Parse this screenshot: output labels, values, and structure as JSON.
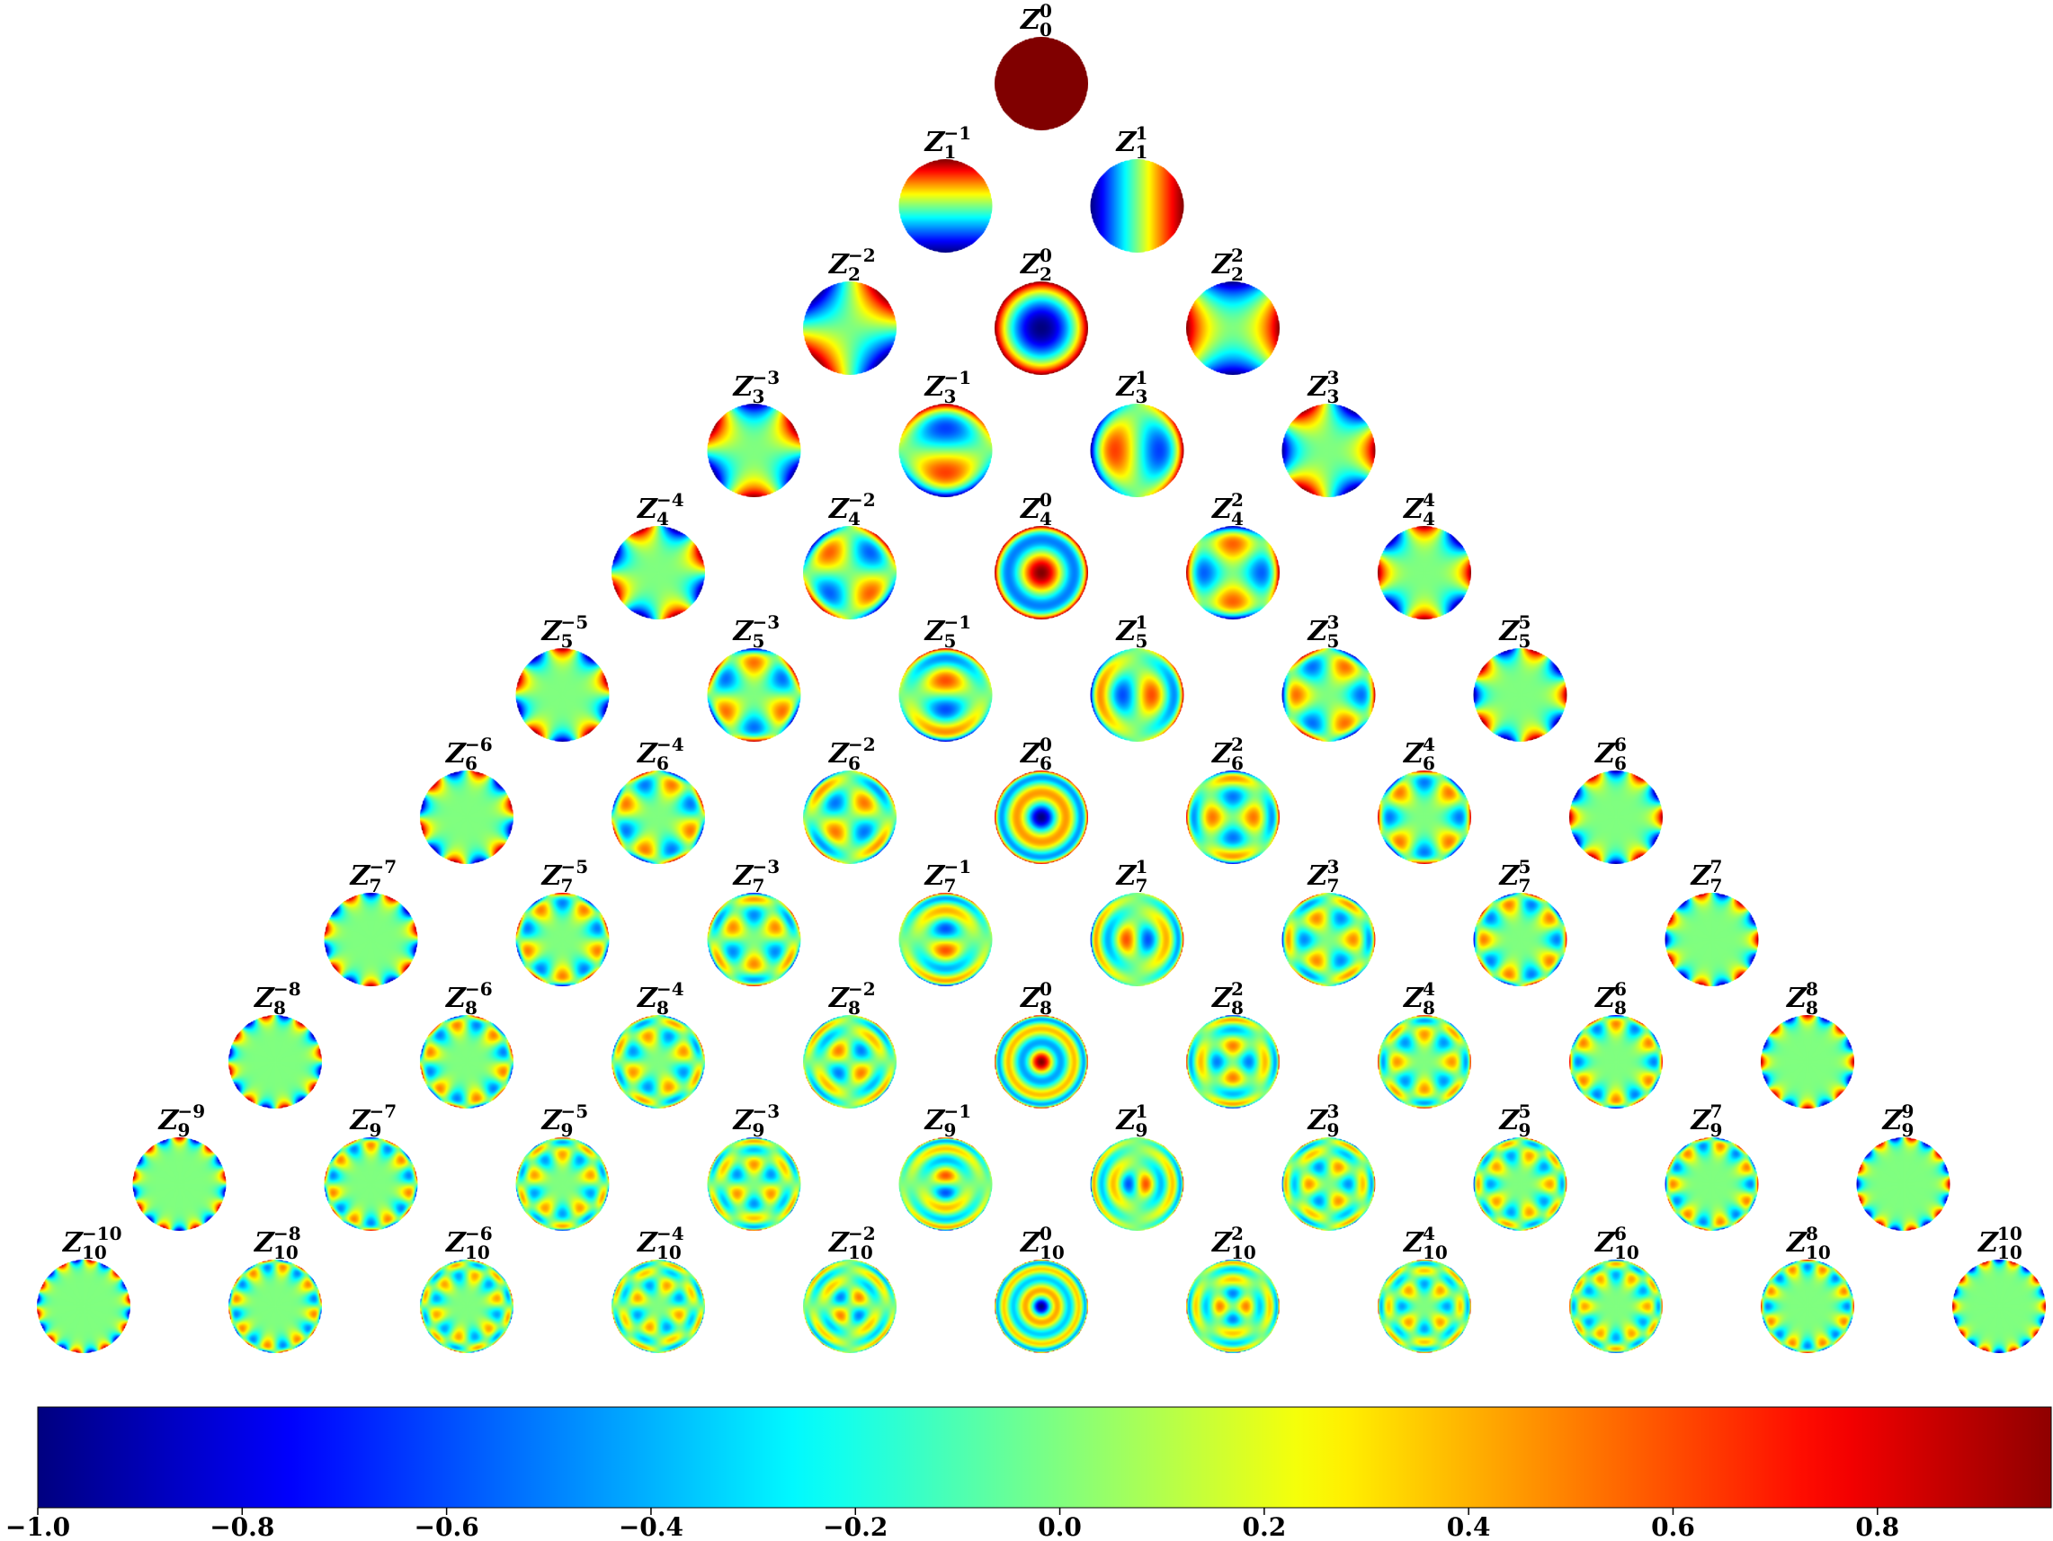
{
  "diagram": {
    "symbol": "Z",
    "max_order": 10,
    "terms": [
      {
        "n": 0,
        "m": 0
      },
      {
        "n": 1,
        "m": -1
      },
      {
        "n": 1,
        "m": 1
      },
      {
        "n": 2,
        "m": -2
      },
      {
        "n": 2,
        "m": 0
      },
      {
        "n": 2,
        "m": 2
      },
      {
        "n": 3,
        "m": -3
      },
      {
        "n": 3,
        "m": -1
      },
      {
        "n": 3,
        "m": 1
      },
      {
        "n": 3,
        "m": 3
      },
      {
        "n": 4,
        "m": -4
      },
      {
        "n": 4,
        "m": -2
      },
      {
        "n": 4,
        "m": 0
      },
      {
        "n": 4,
        "m": 2
      },
      {
        "n": 4,
        "m": 4
      },
      {
        "n": 5,
        "m": -5
      },
      {
        "n": 5,
        "m": -3
      },
      {
        "n": 5,
        "m": -1
      },
      {
        "n": 5,
        "m": 1
      },
      {
        "n": 5,
        "m": 3
      },
      {
        "n": 5,
        "m": 5
      },
      {
        "n": 6,
        "m": -6
      },
      {
        "n": 6,
        "m": -4
      },
      {
        "n": 6,
        "m": -2
      },
      {
        "n": 6,
        "m": 0
      },
      {
        "n": 6,
        "m": 2
      },
      {
        "n": 6,
        "m": 4
      },
      {
        "n": 6,
        "m": 6
      },
      {
        "n": 7,
        "m": -7
      },
      {
        "n": 7,
        "m": -5
      },
      {
        "n": 7,
        "m": -3
      },
      {
        "n": 7,
        "m": -1
      },
      {
        "n": 7,
        "m": 1
      },
      {
        "n": 7,
        "m": 3
      },
      {
        "n": 7,
        "m": 5
      },
      {
        "n": 7,
        "m": 7
      },
      {
        "n": 8,
        "m": -8
      },
      {
        "n": 8,
        "m": -6
      },
      {
        "n": 8,
        "m": -4
      },
      {
        "n": 8,
        "m": -2
      },
      {
        "n": 8,
        "m": 0
      },
      {
        "n": 8,
        "m": 2
      },
      {
        "n": 8,
        "m": 4
      },
      {
        "n": 8,
        "m": 6
      },
      {
        "n": 8,
        "m": 8
      },
      {
        "n": 9,
        "m": -9
      },
      {
        "n": 9,
        "m": -7
      },
      {
        "n": 9,
        "m": -5
      },
      {
        "n": 9,
        "m": -3
      },
      {
        "n": 9,
        "m": -1
      },
      {
        "n": 9,
        "m": 1
      },
      {
        "n": 9,
        "m": 3
      },
      {
        "n": 9,
        "m": 5
      },
      {
        "n": 9,
        "m": 7
      },
      {
        "n": 9,
        "m": 9
      },
      {
        "n": 10,
        "m": -10
      },
      {
        "n": 10,
        "m": -8
      },
      {
        "n": 10,
        "m": -6
      },
      {
        "n": 10,
        "m": -4
      },
      {
        "n": 10,
        "m": -2
      },
      {
        "n": 10,
        "m": 0
      },
      {
        "n": 10,
        "m": 2
      },
      {
        "n": 10,
        "m": 4
      },
      {
        "n": 10,
        "m": 6
      },
      {
        "n": 10,
        "m": 8
      },
      {
        "n": 10,
        "m": 10
      }
    ]
  },
  "colorbar": {
    "colormap": "jet",
    "min": -1.0,
    "max": 0.97,
    "ticks": [
      "−1.0",
      "−0.8",
      "−0.6",
      "−0.4",
      "−0.2",
      "0.0",
      "0.2",
      "0.4",
      "0.6",
      "0.8"
    ],
    "colors": [
      "#00007f",
      "#0000ff",
      "#007fff",
      "#00ffff",
      "#7fff7f",
      "#ffff00",
      "#ff7f00",
      "#ff0000",
      "#7f0000"
    ]
  }
}
